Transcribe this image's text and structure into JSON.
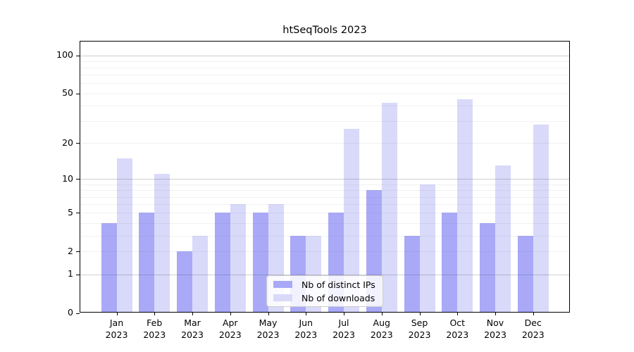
{
  "chart_data": {
    "type": "bar",
    "title": "htSeqTools 2023",
    "categories": [
      "Jan",
      "Feb",
      "Mar",
      "Apr",
      "May",
      "Jun",
      "Jul",
      "Aug",
      "Sep",
      "Oct",
      "Nov",
      "Dec"
    ],
    "category_year": "2023",
    "series": [
      {
        "name": "Nb of distinct IPs",
        "color": "#a9a9f8",
        "values": [
          4,
          5,
          2,
          5,
          5,
          3,
          5,
          8,
          3,
          5,
          4,
          3
        ]
      },
      {
        "name": "Nb of downloads",
        "color": "#d9d9fa",
        "values": [
          15,
          11,
          3,
          6,
          6,
          3,
          26,
          42,
          9,
          45,
          13,
          28
        ]
      }
    ],
    "yscale": "log1p",
    "yticks": [
      0,
      1,
      2,
      5,
      10,
      20,
      50,
      100
    ],
    "ylim": [
      0,
      130
    ],
    "grid": "horizontal major and minor log gridlines",
    "legend_position": "inside bottom-center"
  },
  "colors": {
    "background": "#ffffff",
    "axis": "#000000",
    "grid_major": "rgba(70,70,70,0.26)",
    "grid_minor": "rgba(120,120,120,0.10)",
    "legend_border": "#cccccc",
    "text": "#000000"
  }
}
